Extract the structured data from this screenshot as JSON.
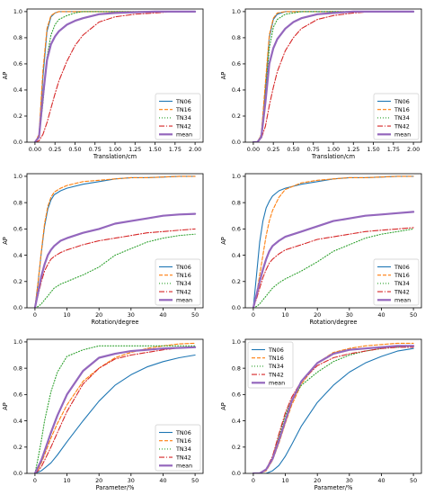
{
  "colors": {
    "TN06": "#1f77b4",
    "TN16": "#ff7f0e",
    "TN34": "#2ca02c",
    "TN42": "#d62728",
    "mean": "#9467bd"
  },
  "chart_data": [
    {
      "type": "line",
      "xlabel": "Translation/cm",
      "ylabel": "AP",
      "xlim": [
        -0.1,
        2.1
      ],
      "ylim": [
        0,
        1.02
      ],
      "xticks": [
        "0.00",
        "0.25",
        "0.50",
        "0.75",
        "1.00",
        "1.25",
        "1.50",
        "1.75",
        "2.00"
      ],
      "yticks": [
        "0.0",
        "0.2",
        "0.4",
        "0.6",
        "0.8",
        "1.0"
      ],
      "legend_position": "bottom-right",
      "x": [
        0,
        0.05,
        0.1,
        0.15,
        0.2,
        0.25,
        0.3,
        0.4,
        0.5,
        0.6,
        0.8,
        1.0,
        1.25,
        1.5,
        1.75,
        2.0
      ],
      "series": [
        {
          "name": "TN06",
          "values": [
            0,
            0.05,
            0.5,
            0.85,
            0.96,
            0.99,
            1.0,
            1.0,
            1.0,
            1.0,
            1.0,
            1.0,
            1.0,
            1.0,
            1.0,
            1.0
          ]
        },
        {
          "name": "TN16",
          "values": [
            0,
            0.06,
            0.55,
            0.87,
            0.97,
            0.99,
            1.0,
            1.0,
            1.0,
            1.0,
            1.0,
            1.0,
            1.0,
            1.0,
            1.0,
            1.0
          ]
        },
        {
          "name": "TN34",
          "values": [
            0,
            0.04,
            0.3,
            0.65,
            0.82,
            0.9,
            0.94,
            0.97,
            0.99,
            1.0,
            1.0,
            1.0,
            1.0,
            1.0,
            1.0,
            1.0
          ]
        },
        {
          "name": "TN42",
          "values": [
            0,
            0.01,
            0.06,
            0.15,
            0.26,
            0.37,
            0.47,
            0.62,
            0.74,
            0.82,
            0.92,
            0.96,
            0.98,
            0.99,
            1.0,
            1.0
          ]
        },
        {
          "name": "mean",
          "values": [
            0,
            0.04,
            0.35,
            0.63,
            0.75,
            0.81,
            0.85,
            0.9,
            0.93,
            0.95,
            0.98,
            0.99,
            0.995,
            1.0,
            1.0,
            1.0
          ]
        }
      ]
    },
    {
      "type": "line",
      "xlabel": "Translation/cm",
      "ylabel": "AP",
      "xlim": [
        -0.1,
        2.1
      ],
      "ylim": [
        0,
        1.02
      ],
      "xticks": [
        "0.00",
        "0.25",
        "0.50",
        "0.75",
        "1.00",
        "1.25",
        "1.50",
        "1.75",
        "2.00"
      ],
      "yticks": [
        "0.0",
        "0.2",
        "0.4",
        "0.6",
        "0.8",
        "1.0"
      ],
      "legend_position": "bottom-right",
      "x": [
        0,
        0.05,
        0.1,
        0.15,
        0.2,
        0.25,
        0.3,
        0.4,
        0.5,
        0.6,
        0.8,
        1.0,
        1.25,
        1.5,
        1.75,
        2.0
      ],
      "series": [
        {
          "name": "TN06",
          "values": [
            0,
            0.0,
            0.05,
            0.4,
            0.8,
            0.94,
            0.98,
            1.0,
            1.0,
            1.0,
            1.0,
            1.0,
            1.0,
            1.0,
            1.0,
            1.0
          ]
        },
        {
          "name": "TN16",
          "values": [
            0,
            0.0,
            0.06,
            0.45,
            0.82,
            0.95,
            0.99,
            1.0,
            1.0,
            1.0,
            1.0,
            1.0,
            1.0,
            1.0,
            1.0,
            1.0
          ]
        },
        {
          "name": "TN34",
          "values": [
            0,
            0.0,
            0.05,
            0.35,
            0.72,
            0.88,
            0.94,
            0.98,
            0.99,
            1.0,
            1.0,
            1.0,
            1.0,
            1.0,
            1.0,
            1.0
          ]
        },
        {
          "name": "TN42",
          "values": [
            0,
            0.0,
            0.03,
            0.12,
            0.28,
            0.42,
            0.54,
            0.7,
            0.8,
            0.87,
            0.94,
            0.97,
            0.99,
            1.0,
            1.0,
            1.0
          ]
        },
        {
          "name": "mean",
          "values": [
            0,
            0.0,
            0.04,
            0.3,
            0.6,
            0.72,
            0.79,
            0.87,
            0.92,
            0.95,
            0.98,
            0.99,
            1.0,
            1.0,
            1.0,
            1.0
          ]
        }
      ]
    },
    {
      "type": "line",
      "xlabel": "Rotation/degree",
      "ylabel": "AP",
      "xlim": [
        -2.5,
        52.5
      ],
      "ylim": [
        0,
        1.02
      ],
      "xticks": [
        "0",
        "10",
        "20",
        "30",
        "40",
        "50"
      ],
      "yticks": [
        "0.0",
        "0.2",
        "0.4",
        "0.6",
        "0.8",
        "1.0"
      ],
      "legend_position": "bottom-right",
      "x": [
        0,
        1,
        2,
        3,
        4,
        5,
        6,
        8,
        10,
        15,
        20,
        25,
        30,
        35,
        40,
        45,
        50
      ],
      "series": [
        {
          "name": "TN06",
          "values": [
            0,
            0.2,
            0.42,
            0.62,
            0.75,
            0.82,
            0.86,
            0.89,
            0.91,
            0.94,
            0.96,
            0.98,
            0.99,
            0.99,
            0.995,
            1.0,
            1.0
          ]
        },
        {
          "name": "TN16",
          "values": [
            0,
            0.2,
            0.43,
            0.64,
            0.77,
            0.84,
            0.88,
            0.91,
            0.93,
            0.96,
            0.97,
            0.98,
            0.99,
            0.99,
            0.995,
            1.0,
            1.0
          ]
        },
        {
          "name": "TN34",
          "values": [
            0,
            0.01,
            0.03,
            0.06,
            0.09,
            0.12,
            0.15,
            0.18,
            0.2,
            0.25,
            0.31,
            0.4,
            0.45,
            0.5,
            0.53,
            0.55,
            0.56
          ]
        },
        {
          "name": "TN42",
          "values": [
            0,
            0.1,
            0.2,
            0.28,
            0.33,
            0.37,
            0.39,
            0.42,
            0.44,
            0.48,
            0.51,
            0.53,
            0.55,
            0.57,
            0.58,
            0.59,
            0.6
          ]
        },
        {
          "name": "mean",
          "values": [
            0,
            0.12,
            0.24,
            0.33,
            0.4,
            0.44,
            0.47,
            0.51,
            0.53,
            0.57,
            0.6,
            0.64,
            0.66,
            0.68,
            0.7,
            0.71,
            0.715
          ]
        }
      ]
    },
    {
      "type": "line",
      "xlabel": "Rotation/degree",
      "ylabel": "AP",
      "xlim": [
        -2.5,
        52.5
      ],
      "ylim": [
        0,
        1.02
      ],
      "xticks": [
        "0",
        "10",
        "20",
        "30",
        "40",
        "50"
      ],
      "yticks": [
        "0.0",
        "0.2",
        "0.4",
        "0.6",
        "0.8",
        "1.0"
      ],
      "legend_position": "bottom-right",
      "x": [
        0,
        1,
        2,
        3,
        4,
        5,
        6,
        8,
        10,
        15,
        20,
        25,
        30,
        35,
        40,
        45,
        50
      ],
      "series": [
        {
          "name": "TN06",
          "values": [
            0,
            0.25,
            0.5,
            0.66,
            0.76,
            0.81,
            0.85,
            0.89,
            0.91,
            0.94,
            0.96,
            0.98,
            0.99,
            0.99,
            0.995,
            1.0,
            1.0
          ]
        },
        {
          "name": "TN16",
          "values": [
            0,
            0.1,
            0.25,
            0.4,
            0.55,
            0.66,
            0.74,
            0.84,
            0.9,
            0.95,
            0.97,
            0.98,
            0.99,
            0.99,
            0.995,
            1.0,
            1.0
          ]
        },
        {
          "name": "TN34",
          "values": [
            0,
            0.01,
            0.03,
            0.06,
            0.09,
            0.12,
            0.15,
            0.19,
            0.22,
            0.28,
            0.35,
            0.43,
            0.48,
            0.53,
            0.56,
            0.58,
            0.6
          ]
        },
        {
          "name": "TN42",
          "values": [
            0,
            0.07,
            0.15,
            0.23,
            0.29,
            0.34,
            0.37,
            0.41,
            0.44,
            0.48,
            0.52,
            0.54,
            0.56,
            0.58,
            0.59,
            0.6,
            0.61
          ]
        },
        {
          "name": "mean",
          "values": [
            0,
            0.1,
            0.2,
            0.29,
            0.37,
            0.43,
            0.47,
            0.51,
            0.54,
            0.58,
            0.62,
            0.66,
            0.68,
            0.7,
            0.71,
            0.72,
            0.73
          ]
        }
      ]
    },
    {
      "type": "line",
      "xlabel": "Parameter/%",
      "ylabel": "AP",
      "xlim": [
        -2.5,
        52.5
      ],
      "ylim": [
        0,
        1.02
      ],
      "xticks": [
        "0",
        "10",
        "20",
        "30",
        "40",
        "50"
      ],
      "yticks": [
        "0.0",
        "0.2",
        "0.4",
        "0.6",
        "0.8",
        "1.0"
      ],
      "legend_position": "bottom-right",
      "x": [
        0,
        1,
        2,
        3,
        5,
        7,
        10,
        15,
        20,
        25,
        30,
        35,
        40,
        45,
        50
      ],
      "series": [
        {
          "name": "TN06",
          "values": [
            0,
            0.01,
            0.02,
            0.04,
            0.08,
            0.14,
            0.24,
            0.4,
            0.55,
            0.67,
            0.75,
            0.81,
            0.85,
            0.88,
            0.9
          ]
        },
        {
          "name": "TN16",
          "values": [
            0,
            0.03,
            0.08,
            0.14,
            0.27,
            0.38,
            0.52,
            0.7,
            0.8,
            0.88,
            0.92,
            0.95,
            0.97,
            0.985,
            0.99
          ]
        },
        {
          "name": "TN34",
          "values": [
            0,
            0.12,
            0.25,
            0.4,
            0.62,
            0.77,
            0.89,
            0.94,
            0.97,
            0.97,
            0.97,
            0.97,
            0.97,
            0.97,
            0.97
          ]
        },
        {
          "name": "TN42",
          "values": [
            0,
            0.02,
            0.05,
            0.1,
            0.2,
            0.31,
            0.47,
            0.68,
            0.8,
            0.87,
            0.9,
            0.92,
            0.94,
            0.955,
            0.96
          ]
        },
        {
          "name": "mean",
          "values": [
            0,
            0.05,
            0.1,
            0.17,
            0.31,
            0.44,
            0.6,
            0.78,
            0.88,
            0.91,
            0.93,
            0.94,
            0.95,
            0.955,
            0.96
          ]
        }
      ]
    },
    {
      "type": "line",
      "xlabel": "Parameter/%",
      "ylabel": "AP",
      "xlim": [
        -2.5,
        52.5
      ],
      "ylim": [
        0,
        1.02
      ],
      "xticks": [
        "0",
        "10",
        "20",
        "30",
        "40",
        "50"
      ],
      "yticks": [
        "0.0",
        "0.2",
        "0.4",
        "0.6",
        "0.8",
        "1.0"
      ],
      "legend_position": "top-left",
      "x": [
        0,
        2,
        4,
        6,
        8,
        10,
        12,
        15,
        20,
        25,
        30,
        35,
        40,
        45,
        50
      ],
      "series": [
        {
          "name": "TN06",
          "values": [
            0,
            0.0,
            0.0,
            0.02,
            0.06,
            0.13,
            0.22,
            0.36,
            0.54,
            0.67,
            0.77,
            0.84,
            0.89,
            0.93,
            0.95
          ]
        },
        {
          "name": "TN16",
          "values": [
            0,
            0.0,
            0.02,
            0.1,
            0.23,
            0.38,
            0.52,
            0.68,
            0.84,
            0.92,
            0.95,
            0.97,
            0.98,
            0.99,
            0.99
          ]
        },
        {
          "name": "TN34",
          "values": [
            0,
            0.0,
            0.03,
            0.12,
            0.28,
            0.44,
            0.56,
            0.67,
            0.77,
            0.85,
            0.9,
            0.93,
            0.95,
            0.96,
            0.97
          ]
        },
        {
          "name": "TN42",
          "values": [
            0,
            0.0,
            0.03,
            0.13,
            0.3,
            0.46,
            0.58,
            0.7,
            0.82,
            0.88,
            0.91,
            0.93,
            0.95,
            0.96,
            0.96
          ]
        },
        {
          "name": "mean",
          "values": [
            0,
            0.0,
            0.03,
            0.11,
            0.25,
            0.4,
            0.55,
            0.7,
            0.84,
            0.91,
            0.94,
            0.95,
            0.96,
            0.97,
            0.97
          ]
        }
      ]
    }
  ]
}
